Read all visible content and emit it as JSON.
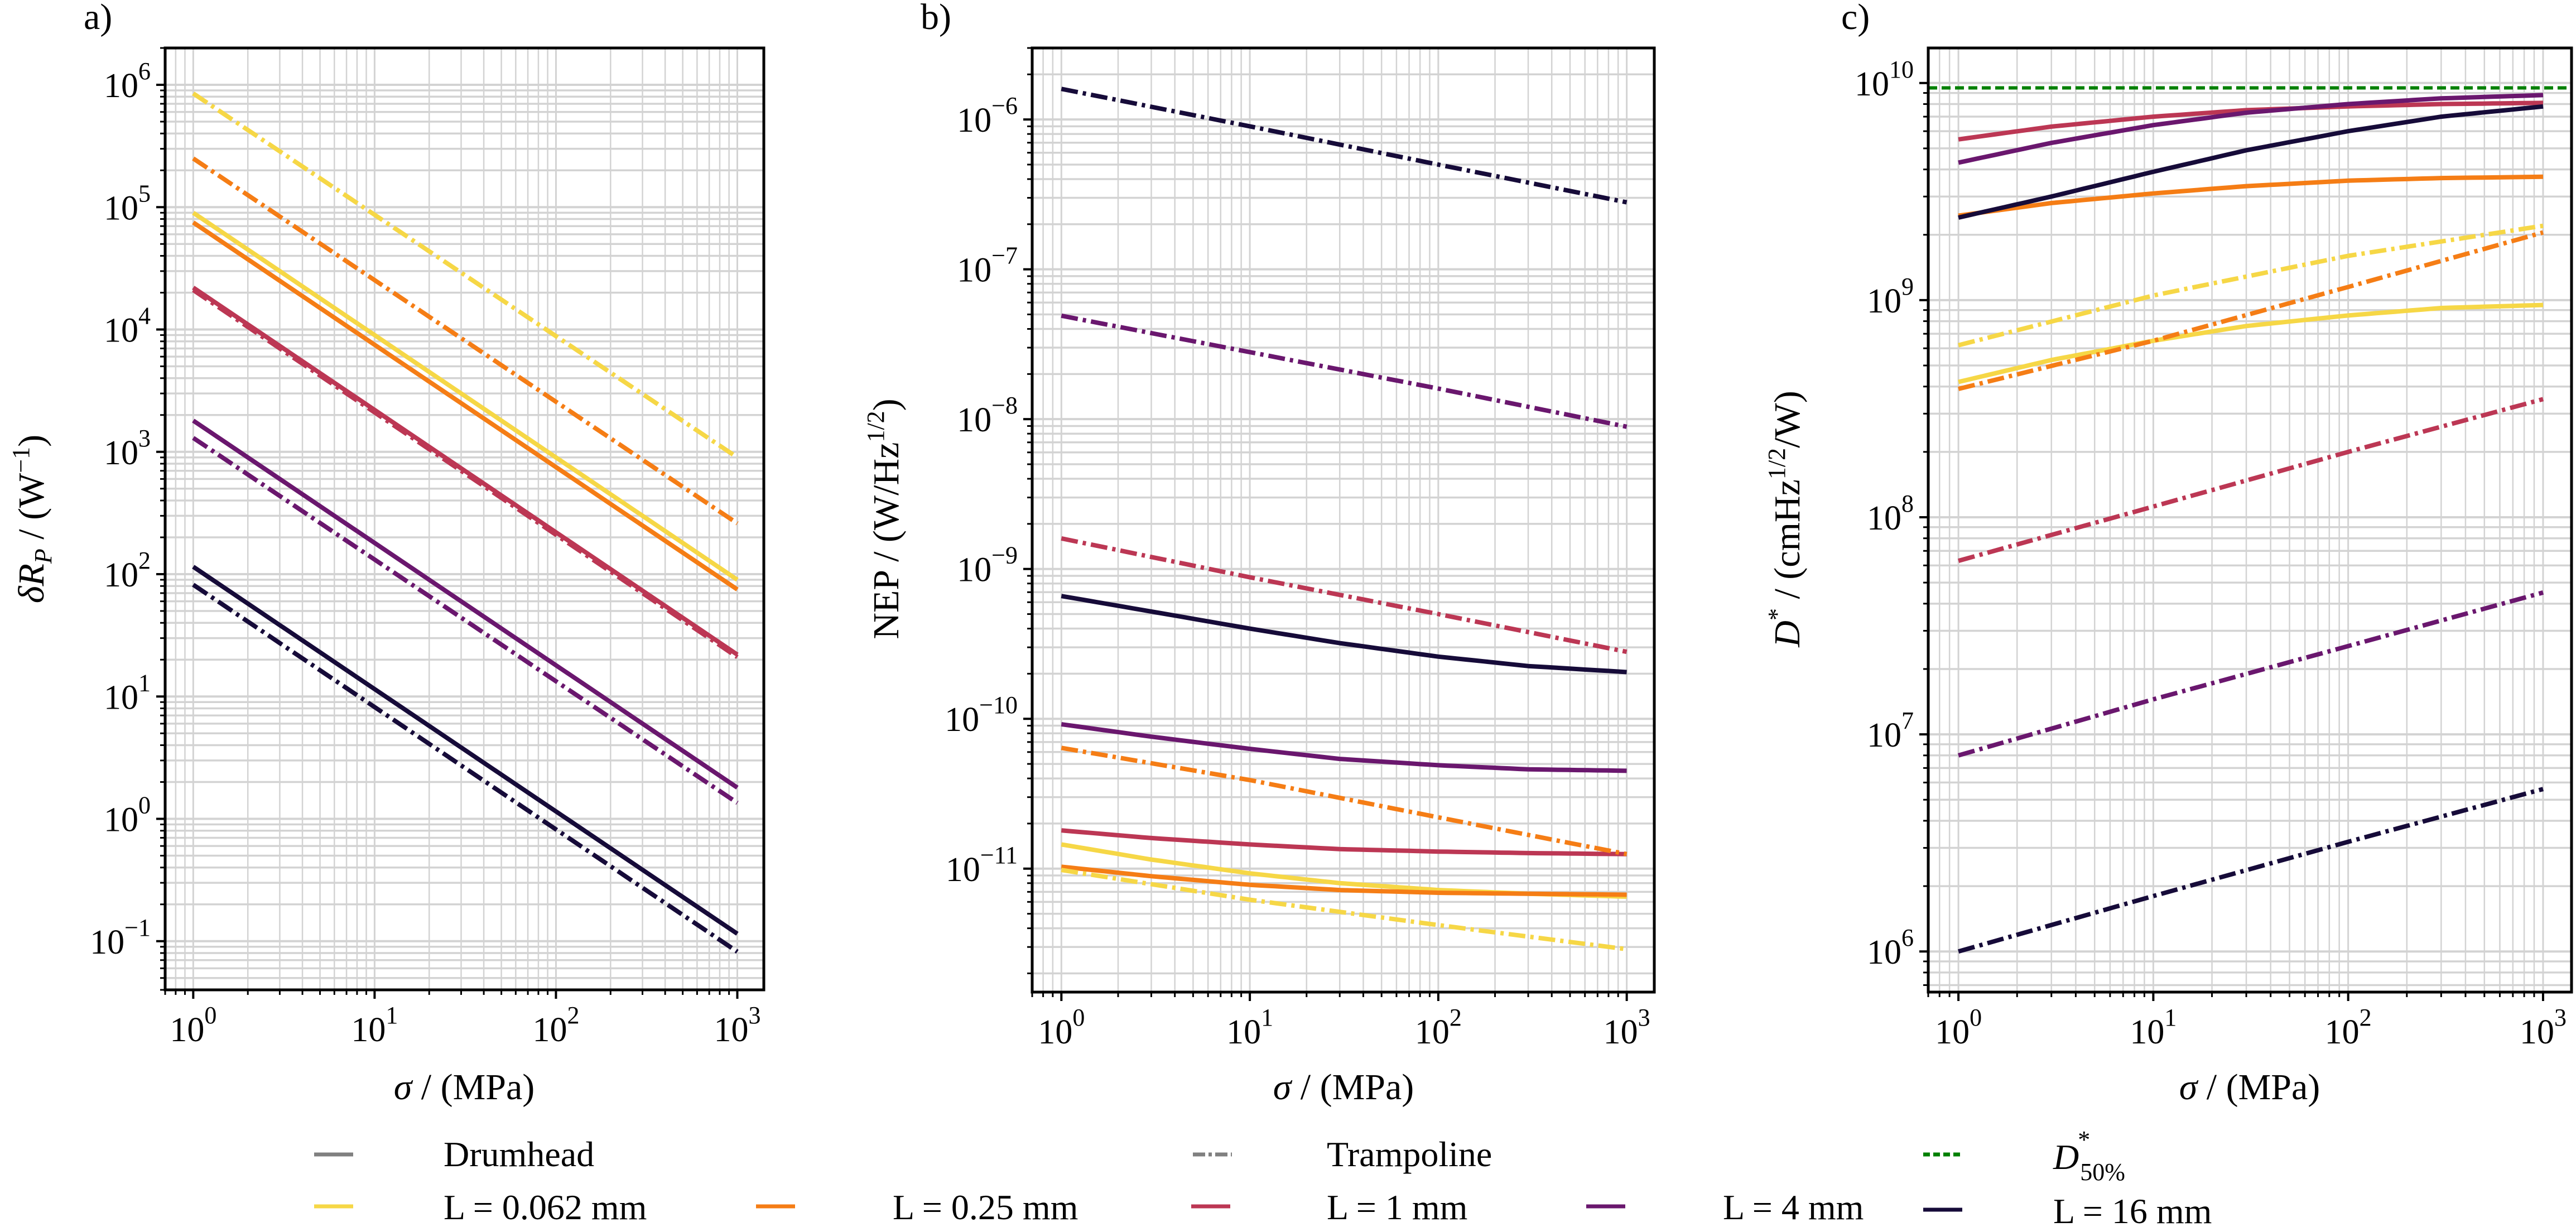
{
  "chart_data": [
    {
      "type": "line",
      "panel": "a)",
      "xlabel": "σ / (MPa)",
      "ylabel": "δR_P / (W^-1)",
      "xscale": "log",
      "yscale": "log",
      "xlim": [
        0.7,
        1400
      ],
      "ylim": [
        0.04,
        2000000
      ],
      "xticks": [
        "10^0",
        "10^1",
        "10^2",
        "10^3"
      ],
      "yticks": [
        "10^-1",
        "10^0",
        "10^1",
        "10^2",
        "10^3",
        "10^4",
        "10^5",
        "10^6"
      ],
      "grid": true,
      "series": [
        {
          "name": "Drumhead L = 0.062 mm",
          "style": "solid",
          "color": "#f6d746",
          "x": [
            1,
            1000
          ],
          "y": [
            90000,
            90
          ]
        },
        {
          "name": "Drumhead L = 0.25 mm",
          "style": "solid",
          "color": "#f57d15",
          "x": [
            1,
            1000
          ],
          "y": [
            75000,
            75
          ]
        },
        {
          "name": "Drumhead L = 1 mm",
          "style": "solid",
          "color": "#bc3754",
          "x": [
            1,
            1000
          ],
          "y": [
            22000,
            22
          ]
        },
        {
          "name": "Drumhead L = 4 mm",
          "style": "solid",
          "color": "#6a176e",
          "x": [
            1,
            1000
          ],
          "y": [
            1800,
            1.8
          ]
        },
        {
          "name": "Drumhead L = 16 mm",
          "style": "solid",
          "color": "#160b39",
          "x": [
            1,
            1000
          ],
          "y": [
            115,
            0.115
          ]
        },
        {
          "name": "Trampoline L = 0.062 mm",
          "style": "dashdot",
          "color": "#f6d746",
          "x": [
            1,
            1000
          ],
          "y": [
            850000,
            900
          ]
        },
        {
          "name": "Trampoline L = 0.25 mm",
          "style": "dashdot",
          "color": "#f57d15",
          "x": [
            1,
            1000
          ],
          "y": [
            250000,
            260
          ]
        },
        {
          "name": "Trampoline L = 1 mm",
          "style": "dashdot",
          "color": "#bc3754",
          "x": [
            1,
            1000
          ],
          "y": [
            21000,
            21
          ]
        },
        {
          "name": "Trampoline L = 4 mm",
          "style": "dashdot",
          "color": "#6a176e",
          "x": [
            1,
            1000
          ],
          "y": [
            1300,
            1.35
          ]
        },
        {
          "name": "Trampoline L = 16 mm",
          "style": "dashdot",
          "color": "#160b39",
          "x": [
            1,
            1000
          ],
          "y": [
            82,
            0.082
          ]
        }
      ]
    },
    {
      "type": "line",
      "panel": "b)",
      "xlabel": "σ / (MPa)",
      "ylabel": "NEP / (W/Hz^1/2)",
      "xscale": "log",
      "yscale": "log",
      "xlim": [
        0.7,
        1400
      ],
      "ylim": [
        1.5e-12,
        3e-06
      ],
      "xticks": [
        "10^0",
        "10^1",
        "10^2",
        "10^3"
      ],
      "yticks": [
        "10^-11",
        "10^-10",
        "10^-9",
        "10^-8",
        "10^-7",
        "10^-6"
      ],
      "grid": true,
      "series": [
        {
          "name": "Drumhead L = 0.062 mm",
          "style": "solid",
          "color": "#f6d746",
          "x": [
            1,
            3,
            10,
            30,
            100,
            300,
            1000
          ],
          "y": [
            1.45e-11,
            1.15e-11,
            9.3e-12,
            8e-12,
            7.2e-12,
            6.8e-12,
            6.5e-12
          ]
        },
        {
          "name": "Drumhead L = 0.25 mm",
          "style": "solid",
          "color": "#f57d15",
          "x": [
            1,
            3,
            10,
            30,
            100,
            300,
            1000
          ],
          "y": [
            1.03e-11,
            8.9e-12,
            7.8e-12,
            7.2e-12,
            6.9e-12,
            6.8e-12,
            6.7e-12
          ]
        },
        {
          "name": "Drumhead L = 1 mm",
          "style": "solid",
          "color": "#bc3754",
          "x": [
            1,
            3,
            10,
            30,
            100,
            300,
            1000
          ],
          "y": [
            1.8e-11,
            1.6e-11,
            1.45e-11,
            1.35e-11,
            1.3e-11,
            1.27e-11,
            1.25e-11
          ]
        },
        {
          "name": "Drumhead L = 4 mm",
          "style": "solid",
          "color": "#6a176e",
          "x": [
            1,
            3,
            10,
            30,
            100,
            300,
            1000
          ],
          "y": [
            9.2e-11,
            7.6e-11,
            6.3e-11,
            5.4e-11,
            4.9e-11,
            4.6e-11,
            4.5e-11
          ]
        },
        {
          "name": "Drumhead L = 16 mm",
          "style": "solid",
          "color": "#160b39",
          "x": [
            1,
            3,
            10,
            30,
            100,
            300,
            1000
          ],
          "y": [
            6.6e-10,
            5.2e-10,
            4e-10,
            3.2e-10,
            2.6e-10,
            2.25e-10,
            2.05e-10
          ]
        },
        {
          "name": "Trampoline L = 0.062 mm",
          "style": "dashdot",
          "color": "#f6d746",
          "x": [
            1,
            10,
            100,
            1000
          ],
          "y": [
            9.8e-12,
            6.2e-12,
            4.2e-12,
            2.9e-12
          ]
        },
        {
          "name": "Trampoline L = 0.25 mm",
          "style": "dashdot",
          "color": "#f57d15",
          "x": [
            1,
            10,
            100,
            1000
          ],
          "y": [
            6.4e-11,
            3.9e-11,
            2.2e-11,
            1.25e-11
          ]
        },
        {
          "name": "Trampoline L = 1 mm",
          "style": "dashdot",
          "color": "#bc3754",
          "x": [
            1,
            10,
            100,
            1000
          ],
          "y": [
            1.6e-09,
            8.8e-10,
            5e-10,
            2.8e-10
          ]
        },
        {
          "name": "Trampoline L = 4 mm",
          "style": "dashdot",
          "color": "#6a176e",
          "x": [
            1,
            10,
            100,
            1000
          ],
          "y": [
            4.9e-08,
            2.8e-08,
            1.6e-08,
            8.9e-09
          ]
        },
        {
          "name": "Trampoline L = 16 mm",
          "style": "dashdot",
          "color": "#160b39",
          "x": [
            1,
            10,
            100,
            1000
          ],
          "y": [
            1.6e-06,
            9e-07,
            5e-07,
            2.8e-07
          ]
        }
      ]
    },
    {
      "type": "line",
      "panel": "c)",
      "xlabel": "σ / (MPa)",
      "ylabel": "D* / (cmHz^1/2/W)",
      "xscale": "log",
      "yscale": "log",
      "xlim": [
        0.7,
        1400
      ],
      "ylim": [
        650000.0,
        14500000000.0
      ],
      "xticks": [
        "10^0",
        "10^1",
        "10^2",
        "10^3"
      ],
      "yticks": [
        "10^6",
        "10^7",
        "10^8",
        "10^9",
        "10^10"
      ],
      "grid": true,
      "series": [
        {
          "name": "D*_50%",
          "style": "dashed",
          "color": "#008000",
          "x": [
            0.7,
            1400
          ],
          "y": [
            9500000000.0,
            9500000000.0
          ]
        },
        {
          "name": "Drumhead L = 0.062 mm",
          "style": "solid",
          "color": "#f6d746",
          "x": [
            1,
            3,
            10,
            30,
            100,
            300,
            1000
          ],
          "y": [
            420000000.0,
            530000000.0,
            650000000.0,
            760000000.0,
            850000000.0,
            920000000.0,
            950000000.0
          ]
        },
        {
          "name": "Drumhead L = 0.25 mm",
          "style": "solid",
          "color": "#f57d15",
          "x": [
            1,
            3,
            10,
            30,
            100,
            300,
            1000
          ],
          "y": [
            2450000000.0,
            2800000000.0,
            3100000000.0,
            3350000000.0,
            3550000000.0,
            3650000000.0,
            3700000000.0
          ]
        },
        {
          "name": "Drumhead L = 1 mm",
          "style": "solid",
          "color": "#bc3754",
          "x": [
            1,
            3,
            10,
            30,
            100,
            300,
            1000
          ],
          "y": [
            5500000000.0,
            6300000000.0,
            7000000000.0,
            7500000000.0,
            7800000000.0,
            8000000000.0,
            8100000000.0
          ]
        },
        {
          "name": "Drumhead L = 4 mm",
          "style": "solid",
          "color": "#6a176e",
          "x": [
            1,
            3,
            10,
            30,
            100,
            300,
            1000
          ],
          "y": [
            4300000000.0,
            5300000000.0,
            6400000000.0,
            7300000000.0,
            8000000000.0,
            8500000000.0,
            8800000000.0
          ]
        },
        {
          "name": "Drumhead L = 16 mm",
          "style": "solid",
          "color": "#160b39",
          "x": [
            1,
            3,
            10,
            30,
            100,
            300,
            1000
          ],
          "y": [
            2400000000.0,
            3000000000.0,
            3900000000.0,
            4900000000.0,
            6000000000.0,
            7000000000.0,
            7800000000.0
          ]
        },
        {
          "name": "Trampoline L = 0.062 mm",
          "style": "dashdot",
          "color": "#f6d746",
          "x": [
            1,
            10,
            100,
            1000
          ],
          "y": [
            620000000.0,
            1050000000.0,
            1600000000.0,
            2200000000.0
          ]
        },
        {
          "name": "Trampoline L = 0.25 mm",
          "style": "dashdot",
          "color": "#f57d15",
          "x": [
            1,
            10,
            100,
            1000
          ],
          "y": [
            390000000.0,
            650000000.0,
            1150000000.0,
            2050000000.0
          ]
        },
        {
          "name": "Trampoline L = 1 mm",
          "style": "dashdot",
          "color": "#bc3754",
          "x": [
            1,
            10,
            100,
            1000
          ],
          "y": [
            63000000.0,
            112000000.0,
            200000000.0,
            350000000.0
          ]
        },
        {
          "name": "Trampoline L = 4 mm",
          "style": "dashdot",
          "color": "#6a176e",
          "x": [
            1,
            10,
            100,
            1000
          ],
          "y": [
            8000000.0,
            14500000.0,
            25500000.0,
            45000000.0
          ]
        },
        {
          "name": "Trampoline L = 16 mm",
          "style": "dashdot",
          "color": "#160b39",
          "x": [
            1,
            10,
            100,
            1000
          ],
          "y": [
            1000000.0,
            1800000.0,
            3200000.0,
            5600000.0
          ]
        }
      ]
    }
  ],
  "legend": {
    "placement": "bottom",
    "entries": [
      {
        "label": "Drumhead",
        "style": "solid",
        "color": "#808080"
      },
      {
        "label": "Trampoline",
        "style": "dashdot",
        "color": "#808080"
      },
      {
        "label": "D*50%",
        "style": "dashed",
        "color": "#008000"
      },
      {
        "label": "L = 0.062 mm",
        "style": "solid",
        "color": "#f6d746"
      },
      {
        "label": "L = 0.25 mm",
        "style": "solid",
        "color": "#f57d15"
      },
      {
        "label": "L = 1 mm",
        "style": "solid",
        "color": "#bc3754"
      },
      {
        "label": "L = 4 mm",
        "style": "solid",
        "color": "#6a176e"
      },
      {
        "label": "L = 16 mm",
        "style": "solid",
        "color": "#160b39"
      }
    ]
  },
  "panels": {
    "a": {
      "label": "a)",
      "ylabel_main": "δR",
      "ylabel_sub": "P",
      "ylabel_rest": " / (W",
      "ylabel_sup": "−1",
      "ylabel_end": ")"
    },
    "b": {
      "label": "b)",
      "ylabel_main": "NEP / (W/Hz",
      "ylabel_sup": "1/2",
      "ylabel_end": ")"
    },
    "c": {
      "label": "c)",
      "ylabel_main": "D",
      "ylabel_sup": "*",
      "ylabel_rest": " / (cmHz",
      "ylabel_sup2": "1/2",
      "ylabel_end": "/W)"
    },
    "xlabel_sigma": "σ",
    "xlabel_rest": " / (MPa)"
  }
}
